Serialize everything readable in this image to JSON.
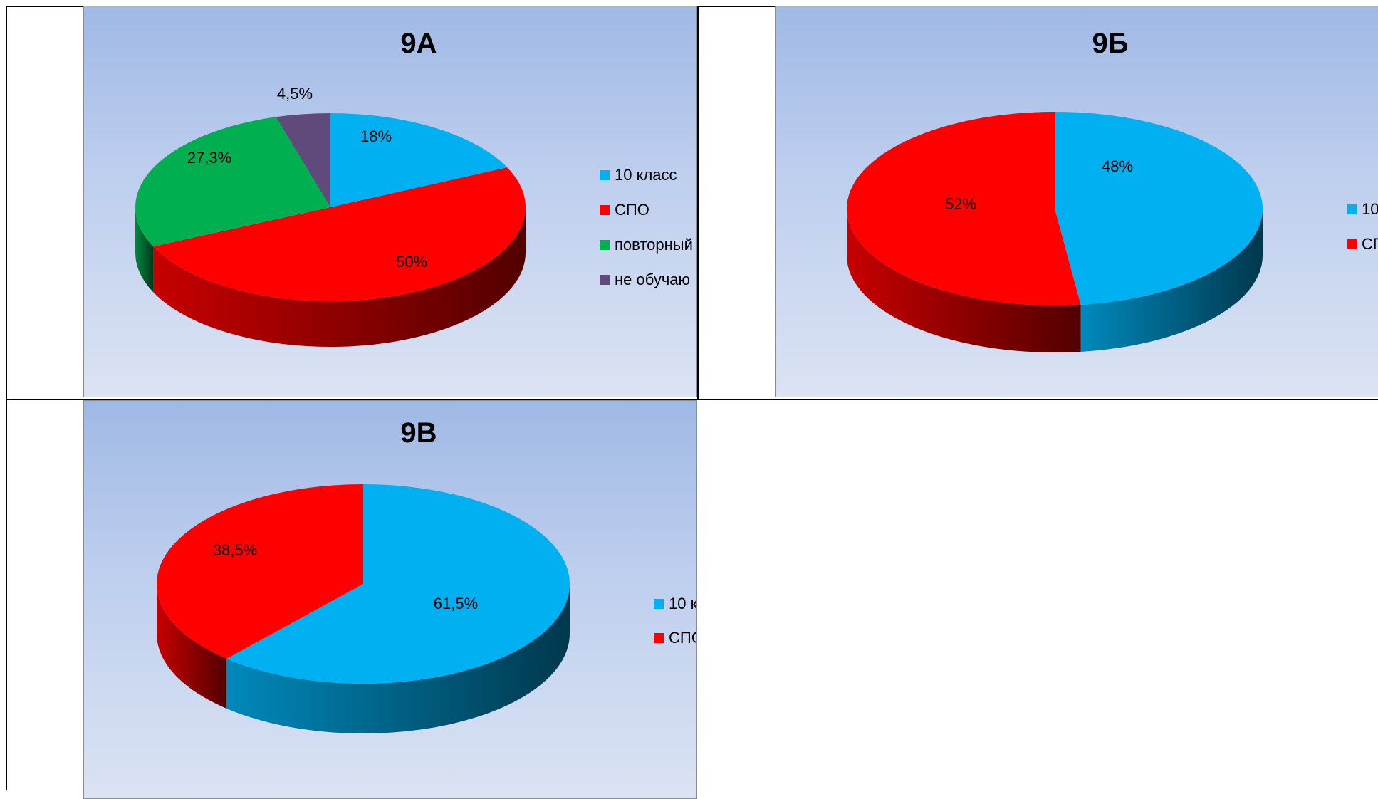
{
  "chart_data": [
    {
      "type": "pie",
      "title": "9А",
      "categories": [
        "10 класс",
        "СПО",
        "повторный",
        "не обучаю"
      ],
      "values": [
        18,
        50,
        27.3,
        4.5
      ],
      "labels": [
        "18%",
        "50%",
        "27,3%",
        "4,5%"
      ],
      "colors": [
        "#00b0f0",
        "#ff0000",
        "#00b050",
        "#604a7b"
      ],
      "legend": "right"
    },
    {
      "type": "pie",
      "title": "9Б",
      "categories": [
        "10",
        "СП"
      ],
      "values": [
        48,
        52
      ],
      "labels": [
        "48%",
        "52%"
      ],
      "colors": [
        "#00b0f0",
        "#ff0000"
      ],
      "legend": "right"
    },
    {
      "type": "pie",
      "title": "9В",
      "categories": [
        "10 к",
        "СПС"
      ],
      "values": [
        61.5,
        38.5
      ],
      "labels": [
        "61,5%",
        "38,5%"
      ],
      "colors": [
        "#00b0f0",
        "#ff0000"
      ],
      "legend": "right"
    }
  ]
}
